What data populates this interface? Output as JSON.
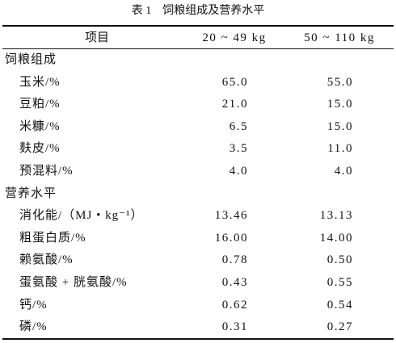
{
  "caption": "表 1　饲粮组成及营养水平",
  "table": {
    "header": [
      "项目",
      "20 ~ 49 kg",
      "50 ~ 110 kg"
    ],
    "sections": [
      {
        "title": "饲粮组成",
        "rows": [
          [
            "玉米/%",
            "65.0",
            "55.0"
          ],
          [
            "豆粕/%",
            "21.0",
            "15.0"
          ],
          [
            "米糠/%",
            "6.5",
            "15.0"
          ],
          [
            "麸皮/%",
            "3.5",
            "11.0"
          ],
          [
            "预混料/%",
            "4.0",
            "4.0"
          ]
        ]
      },
      {
        "title": "营养水平",
        "rows": [
          [
            "消化能/（MJ • kg⁻¹）",
            "13.46",
            "13.13"
          ],
          [
            "粗蛋白质/%",
            "16.00",
            "14.00"
          ],
          [
            "赖氨酸/%",
            "0.78",
            "0.50"
          ],
          [
            "蛋氨酸 + 胱氨酸/%",
            "0.43",
            "0.55"
          ],
          [
            "钙/%",
            "0.62",
            "0.54"
          ],
          [
            "磷/%",
            "0.31",
            "0.27"
          ]
        ]
      }
    ]
  }
}
